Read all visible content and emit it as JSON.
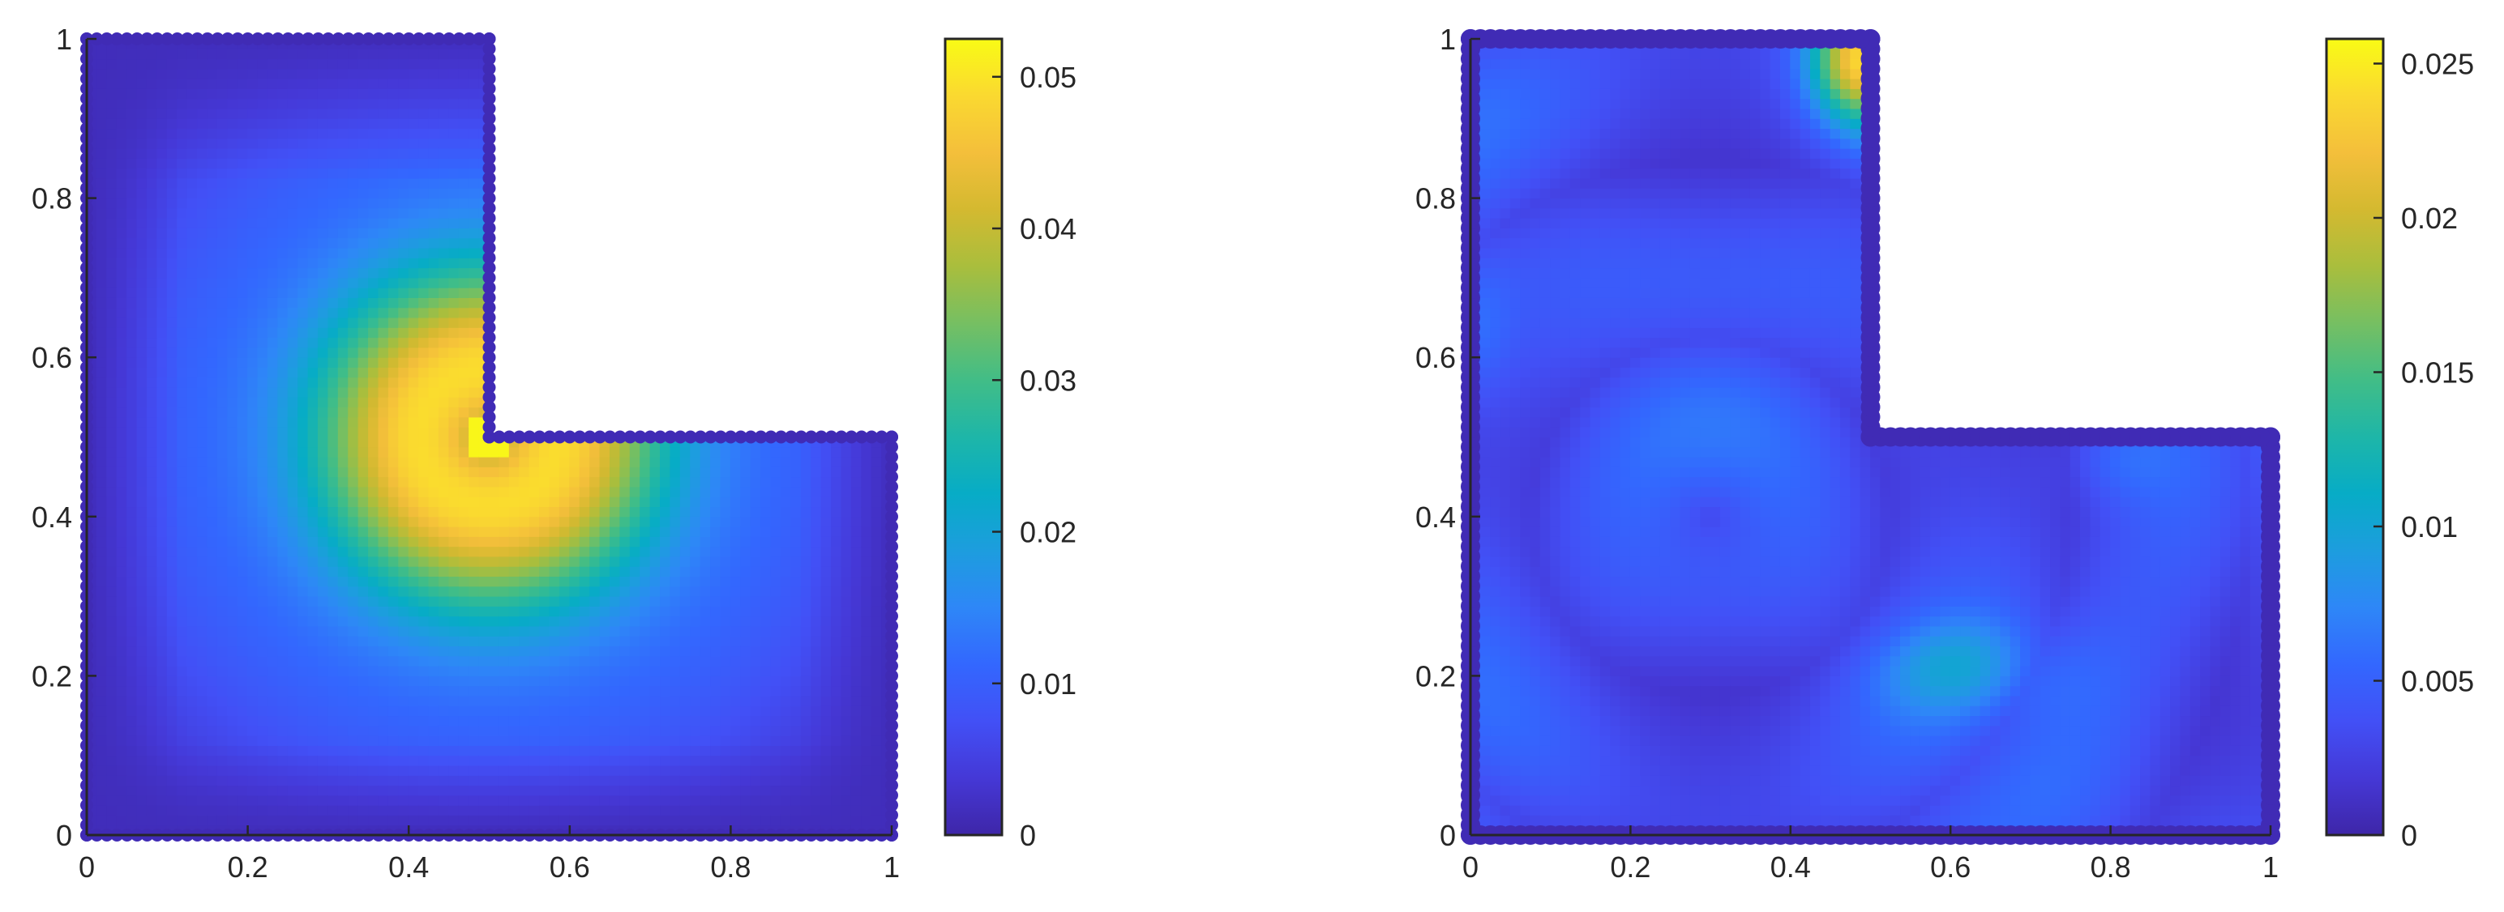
{
  "colormap": "parula",
  "colormap_stops": [
    "#3e26a8",
    "#4538d6",
    "#4250f6",
    "#3367fe",
    "#2e87f7",
    "#1d9dde",
    "#07acc6",
    "#1eb6a8",
    "#41bd87",
    "#76bf62",
    "#a9be3d",
    "#d4b930",
    "#f4bf3b",
    "#fad930",
    "#f9fb15"
  ],
  "chart_data": [
    {
      "type": "heatmap",
      "title": "",
      "xlabel": "",
      "ylabel": "",
      "domain": "L-shaped region: [0,1]x[0,0.5] union [0,0.5]x[0.5,1]",
      "xlim": [
        0,
        1
      ],
      "ylim": [
        0,
        1
      ],
      "x_ticks": [
        "0",
        "0.2",
        "0.4",
        "0.6",
        "0.8",
        "1"
      ],
      "y_ticks": [
        "0",
        "0.2",
        "0.4",
        "0.6",
        "0.8",
        "1"
      ],
      "colorbar": {
        "range": [
          0,
          0.0525
        ],
        "ticks": [
          0,
          0.01,
          0.02,
          0.03,
          0.04,
          0.05
        ],
        "tick_labels": [
          "0",
          "0.01",
          "0.02",
          "0.03",
          "0.04",
          "0.05"
        ]
      },
      "peak_value": 0.0525,
      "peak_location": [
        0.5,
        0.5
      ]
    },
    {
      "type": "heatmap",
      "title": "",
      "xlabel": "",
      "ylabel": "",
      "domain": "L-shaped region: [0,1]x[0,0.5] union [0,0.5]x[0.5,1]",
      "xlim": [
        0,
        1
      ],
      "ylim": [
        0,
        1
      ],
      "x_ticks": [
        "0",
        "0.2",
        "0.4",
        "0.6",
        "0.8",
        "1"
      ],
      "y_ticks": [
        "0",
        "0.2",
        "0.4",
        "0.6",
        "0.8",
        "1"
      ],
      "colorbar": {
        "range": [
          0,
          0.0258
        ],
        "ticks": [
          0,
          0.005,
          0.01,
          0.015,
          0.02,
          0.025
        ],
        "tick_labels": [
          "0",
          "0.005",
          "0.01",
          "0.015",
          "0.02",
          "0.025"
        ]
      },
      "peak_value": 0.0258,
      "peak_location": [
        0.49,
        0.99
      ]
    }
  ]
}
